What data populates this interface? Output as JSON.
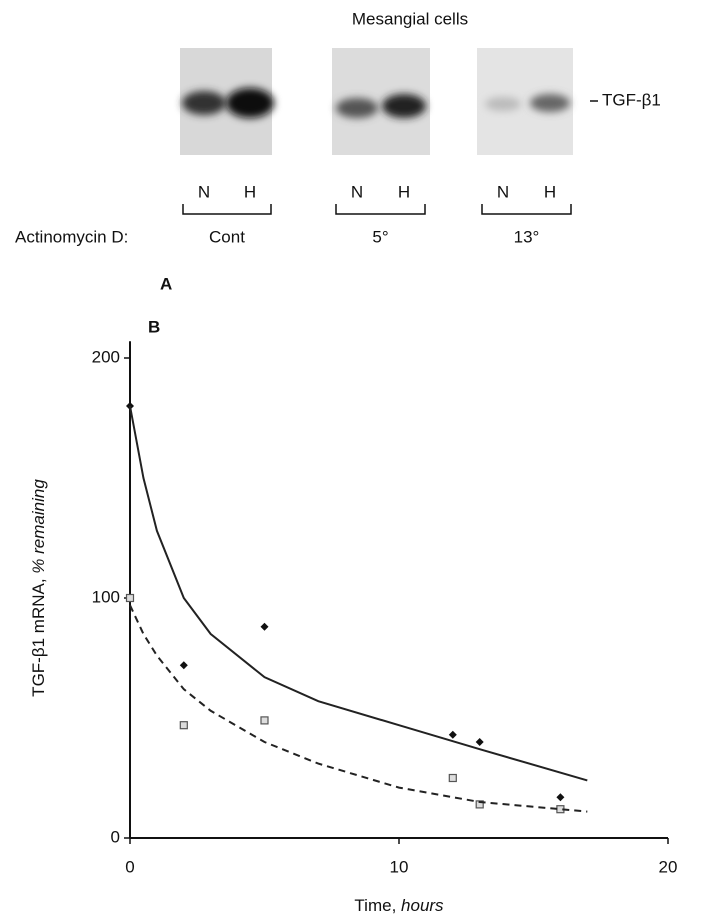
{
  "panel_a": {
    "label": "A",
    "title": "Mesangial cells",
    "band_label": "TGF-β1",
    "row_label": "Actinomycin D:",
    "groups": [
      {
        "lanes": [
          "N",
          "H"
        ],
        "condition": "Cont"
      },
      {
        "lanes": [
          "N",
          "H"
        ],
        "condition": "5°"
      },
      {
        "lanes": [
          "N",
          "H"
        ],
        "condition": "13°"
      }
    ]
  },
  "chart_data": {
    "type": "scatter",
    "panel_label": "B",
    "ylabel": "TGF-β1 mRNA,",
    "ylabel_italic": "% remaining",
    "xlabel": "Time,",
    "xlabel_italic": "hours",
    "xlim": [
      0,
      20
    ],
    "ylim": [
      0,
      207
    ],
    "xticks": [
      0,
      10,
      20
    ],
    "yticks": [
      0,
      100,
      200
    ],
    "series": [
      {
        "style": "diamond",
        "color": "#111111",
        "x": [
          0,
          2,
          5,
          12,
          13,
          16
        ],
        "values": [
          180,
          72,
          88,
          43,
          40,
          17
        ]
      },
      {
        "style": "square",
        "color": "#555555",
        "x": [
          0,
          2,
          5,
          12,
          13,
          16
        ],
        "values": [
          100,
          47,
          49,
          25,
          14,
          12
        ]
      },
      {
        "style": "solid",
        "color": "#222222",
        "x": [
          0,
          0.5,
          1,
          2,
          3,
          5,
          7,
          10,
          13,
          17
        ],
        "values": [
          180,
          150,
          128,
          100,
          85,
          67,
          57,
          47,
          37,
          24
        ]
      },
      {
        "style": "dashed",
        "color": "#222222",
        "x": [
          0,
          0.5,
          1,
          2,
          3,
          5,
          7,
          10,
          13,
          17
        ],
        "values": [
          97,
          85,
          76,
          62,
          53,
          40,
          31,
          21,
          15,
          11
        ]
      }
    ]
  }
}
